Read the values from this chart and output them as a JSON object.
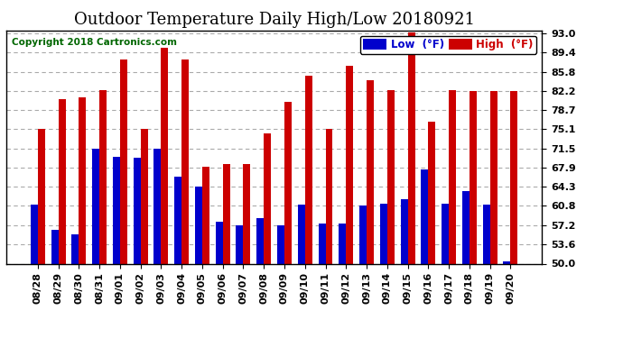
{
  "title": "Outdoor Temperature Daily High/Low 20180921",
  "copyright": "Copyright 2018 Cartronics.com",
  "legend_low_label": "Low  (°F)",
  "legend_high_label": "High  (°F)",
  "low_color": "#0000cc",
  "high_color": "#cc0000",
  "bg_color": "#ffffff",
  "plot_bg_color": "#ffffff",
  "grid_color": "#aaaaaa",
  "categories": [
    "08/28",
    "08/29",
    "08/30",
    "08/31",
    "09/01",
    "09/02",
    "09/03",
    "09/04",
    "09/05",
    "09/06",
    "09/07",
    "09/08",
    "09/09",
    "09/10",
    "09/11",
    "09/12",
    "09/13",
    "09/14",
    "09/15",
    "09/16",
    "09/17",
    "09/18",
    "09/19",
    "09/20"
  ],
  "high_values": [
    75.1,
    80.6,
    81.0,
    82.4,
    88.0,
    75.1,
    90.3,
    88.0,
    68.0,
    68.5,
    68.5,
    74.3,
    80.2,
    85.1,
    75.1,
    86.9,
    84.2,
    82.4,
    93.2,
    76.5,
    82.4,
    82.2,
    82.2,
    82.2
  ],
  "low_values": [
    61.0,
    56.3,
    55.4,
    71.5,
    70.0,
    69.8,
    71.5,
    66.2,
    64.3,
    57.9,
    57.2,
    58.5,
    57.2,
    61.0,
    57.4,
    57.4,
    60.8,
    61.2,
    62.0,
    67.5,
    61.2,
    63.5,
    61.0,
    50.5
  ],
  "ymin": 50.0,
  "ymax": 93.0,
  "yticks": [
    50.0,
    53.6,
    57.2,
    60.8,
    64.3,
    67.9,
    71.5,
    75.1,
    78.7,
    82.2,
    85.8,
    89.4,
    93.0
  ],
  "bar_width": 0.35,
  "title_fontsize": 13,
  "tick_fontsize": 8,
  "copyright_fontsize": 7.5
}
